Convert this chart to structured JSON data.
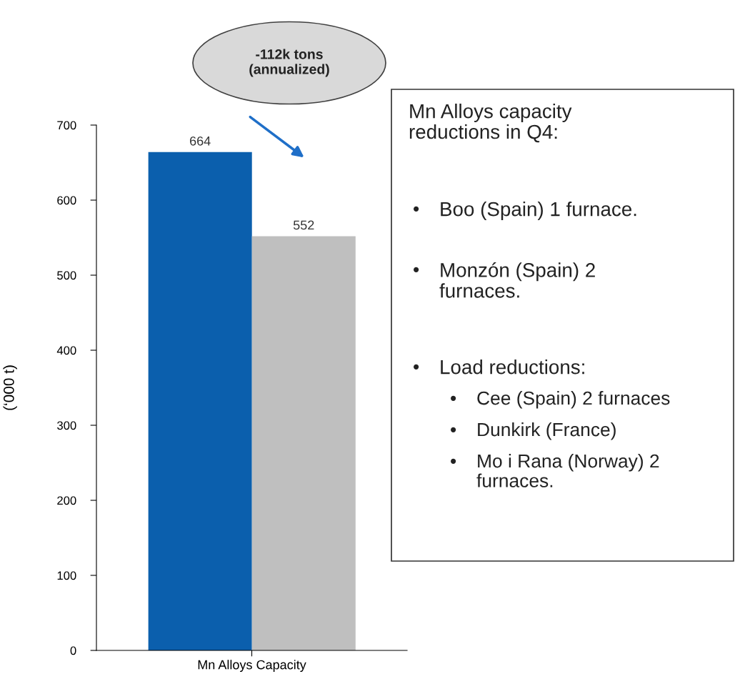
{
  "chart_data": {
    "type": "bar",
    "categories": [
      "Mn Alloys Capacity"
    ],
    "ylabel": "(‘000 t)",
    "series": [
      {
        "color": "#0b5fad",
        "values": [
          664
        ]
      },
      {
        "color": "#bfbfbf",
        "values": [
          552
        ]
      }
    ],
    "ylim": [
      0,
      700
    ],
    "yticks": [
      0,
      100,
      200,
      300,
      400,
      500,
      600,
      700
    ],
    "grid": false,
    "data_labels": true,
    "annotations": [
      "-112k tons\n(annualized)",
      "Mn Alloys capacity\nreductions in Q4:",
      "•Boo (Spain) 1 furnace.",
      "•Monzón (Spain) 2\nfurnaces.",
      "•Load reductions:",
      "•Cee (Spain) 2 furnaces",
      "•Dunkirk (France)",
      "•Mo i Rana (Norway) 2\nfurnaces."
    ]
  }
}
